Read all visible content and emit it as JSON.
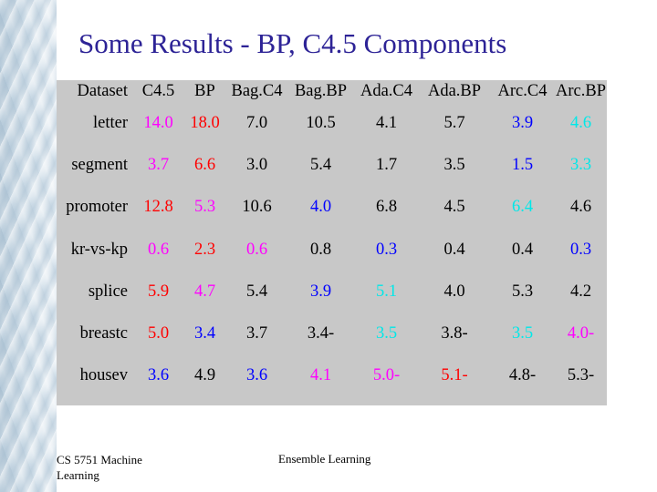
{
  "slide": {
    "title": "Some Results - BP, C4.5 Components",
    "footer_left": "CS 5751 Machine Learning",
    "footer_center": "Ensemble Learning"
  },
  "colors": {
    "title": "#2d2396",
    "black": "#000000",
    "red": "#ff0000",
    "magenta": "#ff00ff",
    "blue": "#0000ff",
    "cyan": "#00e8e8",
    "panel": "#c8c8c8"
  },
  "table": {
    "headers": [
      "Dataset",
      "C4.5",
      "BP",
      "Bag.C4",
      "Bag.BP",
      "Ada.C4",
      "Ada.BP",
      "Arc.C4",
      "Arc.BP"
    ],
    "rows": [
      {
        "dataset": "letter",
        "cells": [
          {
            "v": "14.0",
            "c": "magenta"
          },
          {
            "v": "18.0",
            "c": "red"
          },
          {
            "v": "7.0",
            "c": "black"
          },
          {
            "v": "10.5",
            "c": "black"
          },
          {
            "v": "4.1",
            "c": "black"
          },
          {
            "v": "5.7",
            "c": "black"
          },
          {
            "v": "3.9",
            "c": "blue"
          },
          {
            "v": "4.6",
            "c": "cyan"
          }
        ]
      },
      {
        "dataset": "segment",
        "cells": [
          {
            "v": "3.7",
            "c": "magenta"
          },
          {
            "v": "6.6",
            "c": "red"
          },
          {
            "v": "3.0",
            "c": "black"
          },
          {
            "v": "5.4",
            "c": "black"
          },
          {
            "v": "1.7",
            "c": "black"
          },
          {
            "v": "3.5",
            "c": "black"
          },
          {
            "v": "1.5",
            "c": "blue"
          },
          {
            "v": "3.3",
            "c": "cyan"
          }
        ]
      },
      {
        "dataset": "promoter",
        "cells": [
          {
            "v": "12.8",
            "c": "red"
          },
          {
            "v": "5.3",
            "c": "magenta"
          },
          {
            "v": "10.6",
            "c": "black"
          },
          {
            "v": "4.0",
            "c": "blue"
          },
          {
            "v": "6.8",
            "c": "black"
          },
          {
            "v": "4.5",
            "c": "black"
          },
          {
            "v": "6.4",
            "c": "cyan"
          },
          {
            "v": "4.6",
            "c": "black"
          }
        ]
      },
      {
        "dataset": "kr-vs-kp",
        "cells": [
          {
            "v": "0.6",
            "c": "magenta"
          },
          {
            "v": "2.3",
            "c": "red"
          },
          {
            "v": "0.6",
            "c": "magenta"
          },
          {
            "v": "0.8",
            "c": "black"
          },
          {
            "v": "0.3",
            "c": "blue"
          },
          {
            "v": "0.4",
            "c": "black"
          },
          {
            "v": "0.4",
            "c": "black"
          },
          {
            "v": "0.3",
            "c": "blue"
          }
        ]
      },
      {
        "dataset": "splice",
        "cells": [
          {
            "v": "5.9",
            "c": "red"
          },
          {
            "v": "4.7",
            "c": "magenta"
          },
          {
            "v": "5.4",
            "c": "black"
          },
          {
            "v": "3.9",
            "c": "blue"
          },
          {
            "v": "5.1",
            "c": "cyan"
          },
          {
            "v": "4.0",
            "c": "black"
          },
          {
            "v": "5.3",
            "c": "black"
          },
          {
            "v": "4.2",
            "c": "black"
          }
        ]
      },
      {
        "dataset": "breastc",
        "cells": [
          {
            "v": "5.0",
            "c": "red"
          },
          {
            "v": "3.4",
            "c": "blue"
          },
          {
            "v": "3.7",
            "c": "black"
          },
          {
            "v": "3.4-",
            "c": "black"
          },
          {
            "v": "3.5",
            "c": "cyan"
          },
          {
            "v": "3.8-",
            "c": "black"
          },
          {
            "v": "3.5",
            "c": "cyan"
          },
          {
            "v": "4.0-",
            "c": "magenta"
          }
        ]
      },
      {
        "dataset": "housev",
        "cells": [
          {
            "v": "3.6",
            "c": "blue"
          },
          {
            "v": "4.9",
            "c": "black"
          },
          {
            "v": "3.6",
            "c": "blue"
          },
          {
            "v": "4.1",
            "c": "magenta"
          },
          {
            "v": "5.0-",
            "c": "magenta"
          },
          {
            "v": "5.1-",
            "c": "red"
          },
          {
            "v": "4.8-",
            "c": "black"
          },
          {
            "v": "5.3-",
            "c": "black"
          }
        ]
      }
    ]
  }
}
